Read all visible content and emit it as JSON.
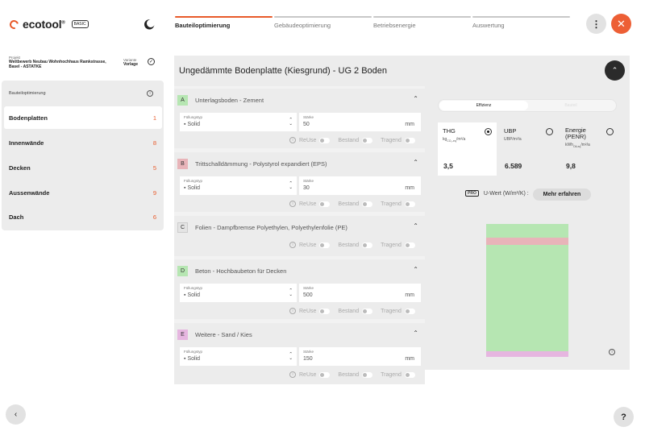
{
  "app": {
    "name": "ecotool",
    "reg": "®",
    "edition": "BASIC"
  },
  "steps": [
    {
      "label": "Bauteiloptimierung",
      "active": true
    },
    {
      "label": "Gebäudeoptimierung",
      "active": false
    },
    {
      "label": "Betriebsenergie",
      "active": false
    },
    {
      "label": "Auswertung",
      "active": false
    }
  ],
  "project": {
    "label": "Projekt",
    "name_line1": "Wettbewerb Neubau Wohnhochhaus Ramkstrasse,",
    "name_line2": "Basel - ASTATKE",
    "variant_label": "Variante",
    "variant_value": "Vorlage"
  },
  "nav": {
    "heading": "Bauteiloptimierung",
    "items": [
      {
        "label": "Bodenplatten",
        "count": "1",
        "active": true
      },
      {
        "label": "Innenwände",
        "count": "8",
        "active": false
      },
      {
        "label": "Decken",
        "count": "5",
        "active": false
      },
      {
        "label": "Aussenwände",
        "count": "9",
        "active": false
      },
      {
        "label": "Dach",
        "count": "6",
        "active": false
      }
    ]
  },
  "main": {
    "title": "Ungedämmte Bodenplatte (Kiesgrund) - UG 2 Boden"
  },
  "layer_labels": {
    "fill_type": "Füllungstyp",
    "thickness": "Stärke",
    "unit": "mm",
    "reuse": "ReUse",
    "bestand": "Bestand",
    "tragend": "Tragend"
  },
  "layers": [
    {
      "letter": "A",
      "name": "Unterlagsboden - Zement",
      "fill": "Solid",
      "thickness": "50",
      "color": "#b6e6b2",
      "expanded": true
    },
    {
      "letter": "B",
      "name": "Trittschalldämmung - Polystyrol expandiert (EPS)",
      "fill": "Solid",
      "thickness": "30",
      "color": "#e8b4b9",
      "expanded": true
    },
    {
      "letter": "C",
      "name": "Folien - Dampfbremse Polyethylen, Polyethylenfolie (PE)",
      "fill": "",
      "thickness": "",
      "color": "#e4e4e4",
      "expanded": false
    },
    {
      "letter": "D",
      "name": "Beton - Hochbaubeton für Decken",
      "fill": "Solid",
      "thickness": "500",
      "color": "#b6e6b2",
      "expanded": true
    },
    {
      "letter": "E",
      "name": "Weitere - Sand / Kies",
      "fill": "Solid",
      "thickness": "150",
      "color": "#e6b6e0",
      "expanded": true
    }
  ],
  "segment": {
    "on": "Effizienz",
    "off": "Bauteil"
  },
  "metrics": [
    {
      "title": "THG",
      "unit": "kg",
      "unit_sub": "CO₂-eq",
      "unit_tail": "/m²/a",
      "value": "3,5",
      "selected": true
    },
    {
      "title": "UBP",
      "unit": "UBP/m²/a",
      "unit_sub": "",
      "unit_tail": "",
      "value": "6.589",
      "selected": false
    },
    {
      "title": "Energie (PENR)",
      "unit": "kWh",
      "unit_sub": "Oil-eq",
      "unit_tail": "/m²/a",
      "value": "9,8",
      "selected": false
    }
  ],
  "uwert": {
    "pro": "PRO",
    "label": "U-Wert (W/m²/K) :",
    "button": "Mehr erfahren"
  },
  "icons": {
    "logo": "ecotool-logo-icon",
    "theme": "moon-icon",
    "menu": "more-vertical-icon",
    "close": "close-icon",
    "back": "chevron-left-icon",
    "help": "help-icon"
  }
}
